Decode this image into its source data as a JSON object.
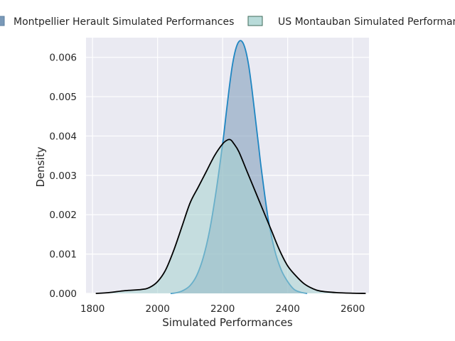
{
  "chart_data": {
    "type": "area",
    "xlabel": "Simulated Performances",
    "ylabel": "Density",
    "xlim": [
      1780,
      2650
    ],
    "ylim": [
      0,
      0.0065
    ],
    "x_ticks": [
      1800,
      2000,
      2200,
      2400,
      2600
    ],
    "x_tick_labels": [
      "1800",
      "2000",
      "2200",
      "2400",
      "2600"
    ],
    "y_ticks": [
      0,
      0.001,
      0.002,
      0.003,
      0.004,
      0.005,
      0.006
    ],
    "y_tick_labels": [
      "0.000",
      "0.001",
      "0.002",
      "0.003",
      "0.004",
      "0.005",
      "0.006"
    ],
    "grid": true,
    "legend_position": "top",
    "background_color": "#eaeaf2",
    "series": [
      {
        "name": "Montpellier Herault Simulated Performances",
        "fill_color": "#7a99b8",
        "line_color": "#1f86c2",
        "x": [
          2040,
          2060,
          2080,
          2100,
          2120,
          2140,
          2160,
          2180,
          2200,
          2210,
          2220,
          2230,
          2240,
          2250,
          2260,
          2270,
          2280,
          2290,
          2300,
          2310,
          2320,
          2340,
          2360,
          2380,
          2400,
          2420,
          2440,
          2460
        ],
        "y": [
          0.0,
          2e-05,
          8e-05,
          0.0002,
          0.00045,
          0.0009,
          0.0016,
          0.0026,
          0.0038,
          0.0045,
          0.0052,
          0.0058,
          0.0062,
          0.0064,
          0.0064,
          0.0062,
          0.0058,
          0.0052,
          0.0045,
          0.0038,
          0.0031,
          0.0019,
          0.0011,
          0.0006,
          0.0003,
          0.0001,
          3e-05,
          0.0
        ]
      },
      {
        "name": "US Montauban Simulated Performances",
        "fill_color": "#a6d2cf",
        "line_color": "#000000",
        "x": [
          1810,
          1850,
          1900,
          1950,
          1975,
          2000,
          2025,
          2050,
          2075,
          2100,
          2125,
          2150,
          2175,
          2200,
          2215,
          2225,
          2235,
          2250,
          2275,
          2300,
          2325,
          2350,
          2375,
          2400,
          2425,
          2450,
          2475,
          2500,
          2550,
          2600,
          2640
        ],
        "y": [
          0.0,
          2e-05,
          7e-05,
          0.0001,
          0.00015,
          0.0003,
          0.0006,
          0.0011,
          0.0017,
          0.0023,
          0.0027,
          0.0031,
          0.0035,
          0.0038,
          0.0039,
          0.0039,
          0.0038,
          0.0036,
          0.0031,
          0.0026,
          0.0021,
          0.0016,
          0.0011,
          0.0007,
          0.00045,
          0.00025,
          0.00013,
          6e-05,
          2e-05,
          5e-06,
          0.0
        ]
      }
    ]
  }
}
